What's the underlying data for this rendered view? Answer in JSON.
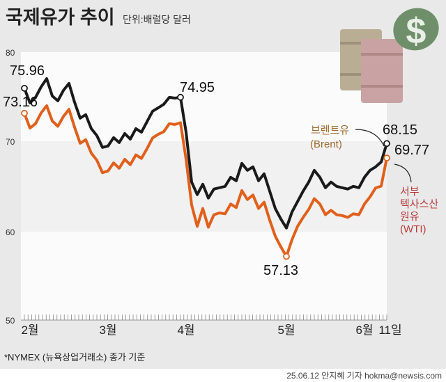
{
  "header": {
    "title": "국제유가 추이",
    "unit": "단위:배럴당 달러"
  },
  "colors": {
    "brent": "#1a1a1a",
    "wti": "#e0601c",
    "brent_label": "#a06a30",
    "wti_label": "#b83a3a"
  },
  "chart_data": {
    "type": "line",
    "title": "국제유가 추이",
    "ylabel": "단위:배럴당 달러",
    "ylim": [
      50,
      80
    ],
    "yticks": [
      "80",
      "70",
      "60",
      "50"
    ],
    "xticks": [
      {
        "label": "2월",
        "index": 1
      },
      {
        "label": "3월",
        "index": 15
      },
      {
        "label": "4월",
        "index": 29
      },
      {
        "label": "5월",
        "index": 47
      },
      {
        "label": "6월",
        "index": 61
      },
      {
        "label": "11일",
        "index": 65
      }
    ],
    "series": [
      {
        "name": "브렌트유 (Brent)",
        "values": [
          75.96,
          74.32,
          74.94,
          76.11,
          77.04,
          75.1,
          74.55,
          75.72,
          76.5,
          74.4,
          72.61,
          73.0,
          71.44,
          70.66,
          69.34,
          69.49,
          70.43,
          69.88,
          70.89,
          70.27,
          71.44,
          71.05,
          72.22,
          73.39,
          73.77,
          74.16,
          74.94,
          74.86,
          74.95,
          71.05,
          65.45,
          64.05,
          65.21,
          63.66,
          64.67,
          64.82,
          64.98,
          65.99,
          65.6,
          67.55,
          66.77,
          67.16,
          65.6,
          66.38,
          64.44,
          62.49,
          61.32,
          60.31,
          62.1,
          63.27,
          64.44,
          65.45,
          66.77,
          65.99,
          64.82,
          65.45,
          64.98,
          64.82,
          64.67,
          64.98,
          64.82,
          65.99,
          66.77,
          67.16,
          67.7,
          69.77
        ]
      },
      {
        "name": "서부텍사스산원유 (WTI)",
        "values": [
          73.16,
          71.5,
          72.0,
          73.2,
          74.0,
          72.3,
          71.7,
          72.8,
          73.6,
          71.6,
          69.8,
          70.2,
          68.7,
          67.9,
          66.5,
          66.7,
          67.6,
          67.0,
          68.0,
          67.4,
          68.5,
          68.1,
          69.2,
          70.4,
          70.8,
          71.1,
          72.0,
          71.9,
          72.1,
          68.0,
          62.9,
          60.5,
          62.5,
          60.4,
          61.8,
          62.0,
          61.9,
          63.0,
          62.6,
          64.5,
          63.5,
          64.0,
          62.5,
          63.2,
          61.2,
          59.4,
          58.2,
          57.13,
          59.0,
          60.5,
          61.5,
          62.4,
          63.6,
          63.0,
          61.8,
          62.3,
          61.8,
          61.7,
          61.5,
          61.9,
          61.8,
          63.0,
          63.8,
          64.8,
          65.0,
          68.15
        ]
      }
    ],
    "annotations": [
      "75.96",
      "73.16",
      "74.95",
      "57.13",
      "68.15",
      "69.77"
    ],
    "legend": {
      "brent": "브렌트유",
      "brent_en": "(Brent)",
      "wti_1": "서부",
      "wti_2": "텍사스산",
      "wti_3": "원유",
      "wti_en": "(WTI)"
    }
  },
  "footer": {
    "note": "*NYMEX (뉴욕상업거래소) 종가 기준",
    "credit": "25.06.12 안지혜 기자 hokma@newsis.com"
  }
}
